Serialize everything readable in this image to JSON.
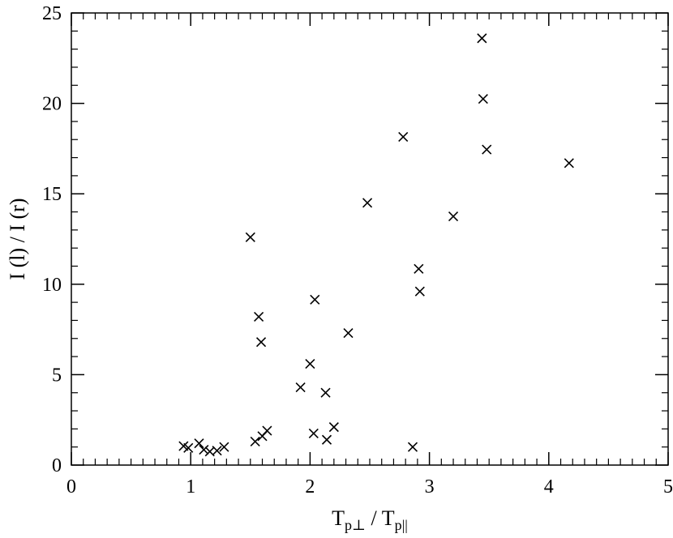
{
  "chart_data": {
    "type": "scatter",
    "marker": "x",
    "marker_color": "#000000",
    "xlabel_parts": {
      "main1": "T",
      "sub1": "p⊥",
      "sep": " / ",
      "main2": "T",
      "sub2": "p||"
    },
    "ylabel": "I (l) / I (r)",
    "xlim": [
      0,
      5
    ],
    "ylim": [
      0,
      25
    ],
    "xticks": [
      "0",
      "1",
      "2",
      "3",
      "4",
      "5"
    ],
    "yticks": [
      "0",
      "5",
      "10",
      "15",
      "20",
      "25"
    ],
    "grid": false,
    "x": [
      0.94,
      0.98,
      1.07,
      1.11,
      1.16,
      1.22,
      1.28,
      1.5,
      1.54,
      1.57,
      1.59,
      1.6,
      1.64,
      1.92,
      2.0,
      2.03,
      2.04,
      2.13,
      2.14,
      2.2,
      2.32,
      2.48,
      2.78,
      2.86,
      2.91,
      2.92,
      3.2,
      3.44,
      3.45,
      3.48,
      4.17
    ],
    "y": [
      1.05,
      0.95,
      1.2,
      0.85,
      0.75,
      0.8,
      1.0,
      12.6,
      1.3,
      8.2,
      6.8,
      1.6,
      1.9,
      4.3,
      5.6,
      1.75,
      9.15,
      4.0,
      1.4,
      2.1,
      7.3,
      14.5,
      18.15,
      1.0,
      10.85,
      9.6,
      13.75,
      23.6,
      20.25,
      17.45,
      16.7
    ]
  }
}
